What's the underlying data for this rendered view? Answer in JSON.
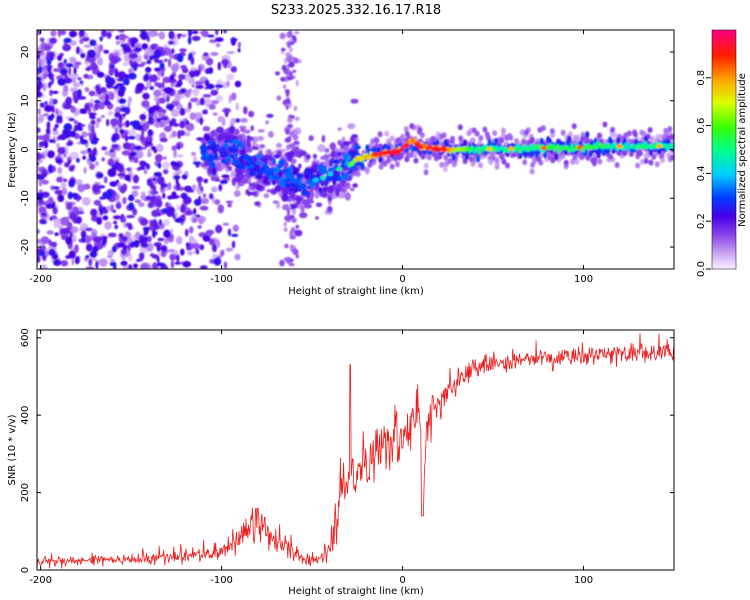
{
  "title": "S233.2025.332.16.17.R18",
  "chart_data": [
    {
      "type": "heatmap",
      "name": "spectrogram",
      "xlabel": "Height of straight line (km)",
      "ylabel": "Frequency (Hz)",
      "xlim": [
        -202,
        150
      ],
      "ylim": [
        -24.5,
        24.5
      ],
      "xticks": [
        -200,
        -100,
        0,
        100
      ],
      "xtick_labels": [
        "-200",
        "-100",
        "0",
        "100"
      ],
      "yticks": [
        -20,
        -10,
        0,
        10,
        20
      ],
      "ytick_labels": [
        "-20",
        "-10",
        "0",
        "10",
        "20"
      ],
      "ridge": {
        "description": "dominant frequency track (Hz) vs height (km)",
        "x": [
          -105,
          -95,
          -85,
          -75,
          -65,
          -55,
          -45,
          -35,
          -25,
          -15,
          -5,
          0,
          5,
          10,
          20,
          40,
          60,
          80,
          100,
          120,
          150
        ],
        "y": [
          -1,
          0,
          -2,
          -4,
          -5,
          -7,
          -6,
          -4,
          -2,
          -1,
          -0.5,
          0,
          2,
          0.5,
          0,
          0,
          0.2,
          0.3,
          0.5,
          0.6,
          0.7
        ],
        "amplitude": [
          0.2,
          0.25,
          0.2,
          0.2,
          0.2,
          0.25,
          0.3,
          0.5,
          0.7,
          0.85,
          0.9,
          0.95,
          0.85,
          0.9,
          0.9,
          0.5,
          0.5,
          0.55,
          0.55,
          0.5,
          0.5
        ]
      },
      "noise_region": {
        "x_from": -202,
        "x_to": -100,
        "amplitude": 0.15
      },
      "colorbar": {
        "label": "Normalized spectral amplitude",
        "range": [
          0,
          1
        ],
        "ticks": [
          0,
          0.2,
          0.4,
          0.6,
          0.8
        ],
        "tick_labels": [
          "0.0",
          "0.2",
          "0.4",
          "0.6",
          "0.8"
        ]
      }
    },
    {
      "type": "line",
      "name": "snr",
      "xlabel": "Height of straight line (km)",
      "ylabel": "SNR (10 * v/v)",
      "xlim": [
        -202,
        150
      ],
      "ylim": [
        0,
        620
      ],
      "xticks": [
        -200,
        -100,
        0,
        100
      ],
      "xtick_labels": [
        "-200",
        "-100",
        "0",
        "100"
      ],
      "yticks": [
        0,
        200,
        400,
        600
      ],
      "ytick_labels": [
        "0",
        "200",
        "400",
        "600"
      ],
      "series": [
        {
          "name": "SNR",
          "color": "#ee1c1c",
          "x": [
            -202,
            -180,
            -160,
            -140,
            -120,
            -110,
            -100,
            -95,
            -90,
            -85,
            -80,
            -75,
            -70,
            -65,
            -60,
            -55,
            -50,
            -45,
            -40,
            -37,
            -35,
            -32,
            -30,
            -28,
            -25,
            -20,
            -15,
            -10,
            -5,
            0,
            5,
            8,
            10,
            11,
            12,
            15,
            20,
            25,
            30,
            35,
            40,
            45,
            50,
            60,
            70,
            80,
            90,
            100,
            110,
            120,
            130,
            140,
            150
          ],
          "y": [
            25,
            25,
            28,
            30,
            35,
            40,
            50,
            60,
            90,
            110,
            120,
            100,
            80,
            60,
            40,
            30,
            25,
            30,
            60,
            120,
            180,
            230,
            260,
            240,
            250,
            280,
            300,
            330,
            350,
            330,
            380,
            400,
            420,
            180,
            280,
            400,
            430,
            460,
            480,
            510,
            520,
            530,
            535,
            540,
            545,
            550,
            550,
            555,
            555,
            560,
            560,
            565,
            565
          ],
          "noise_amplitude": [
            12,
            12,
            12,
            13,
            15,
            18,
            22,
            25,
            35,
            45,
            50,
            45,
            40,
            30,
            20,
            15,
            12,
            15,
            30,
            80,
            90,
            80,
            70,
            60,
            60,
            60,
            60,
            60,
            60,
            60,
            60,
            60,
            40,
            40,
            50,
            50,
            45,
            40,
            40,
            30,
            25,
            25,
            25,
            25,
            25,
            25,
            25,
            25,
            25,
            25,
            25,
            25,
            25
          ]
        }
      ]
    }
  ]
}
